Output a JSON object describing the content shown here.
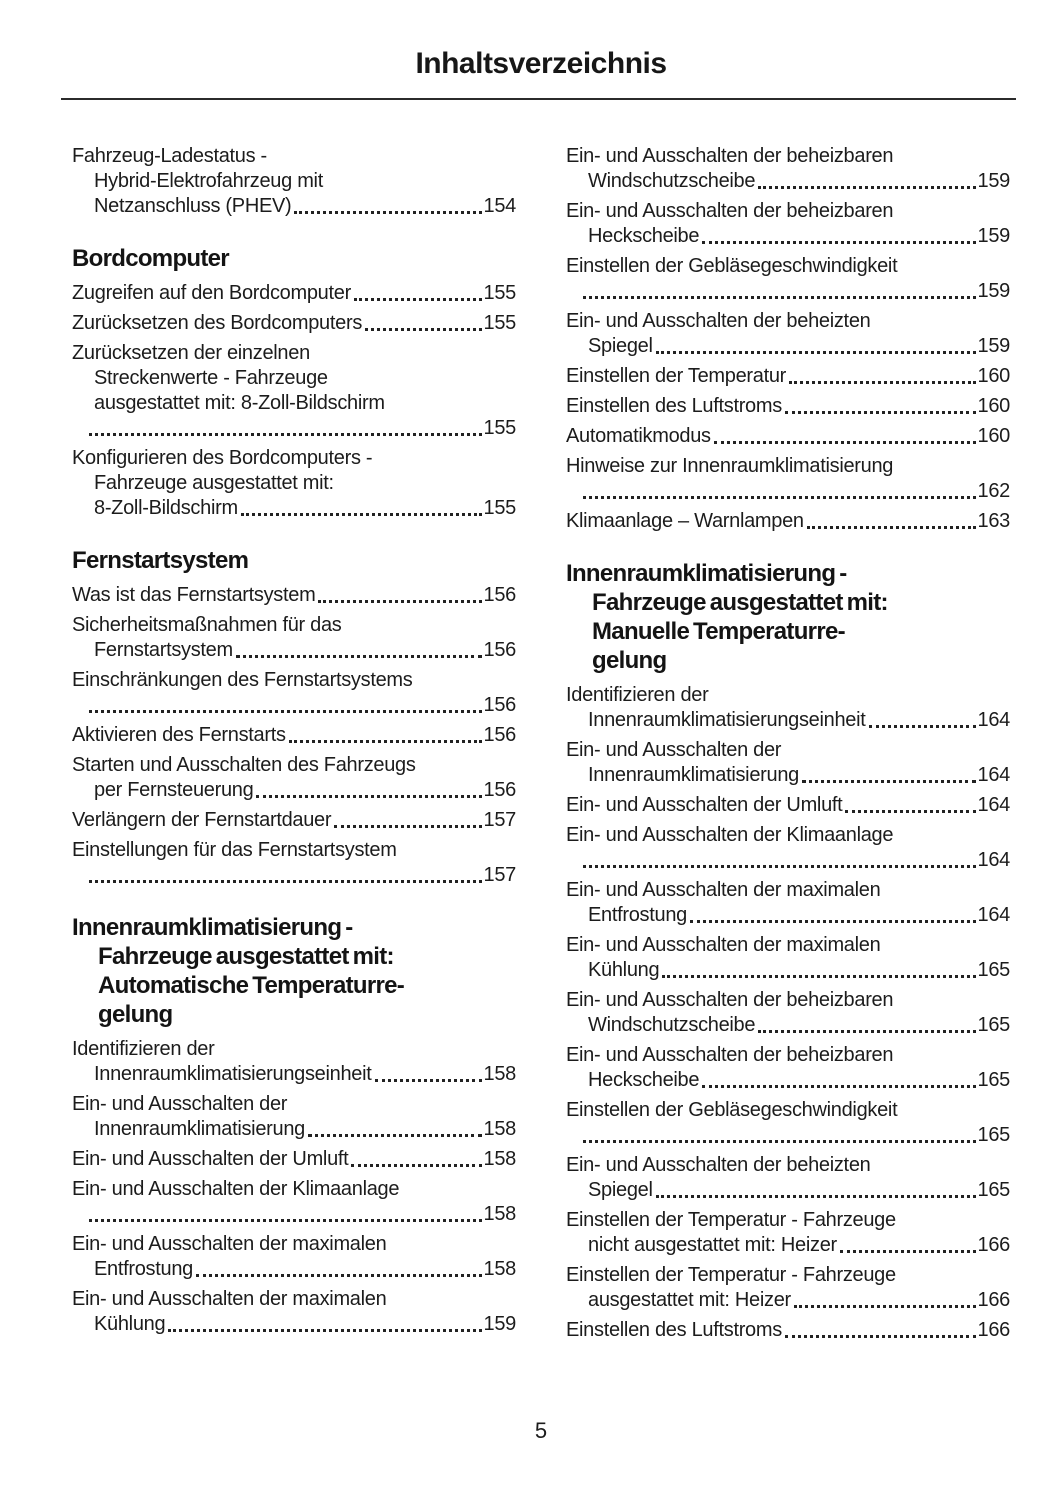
{
  "title": "Inhaltsverzeichnis",
  "footer": {
    "page_number": "5"
  },
  "colors": {
    "text": "#1c1c1c",
    "rule": "#2b2b2b",
    "background": "#ffffff"
  },
  "toc": {
    "columns": [
      {
        "blocks": [
          {
            "type": "entry",
            "lines": [
              "Fahrzeug-Ladestatus -",
              "Hybrid-Elektrofahrzeug mit",
              "Netzanschluss (PHEV)"
            ],
            "page": "154"
          },
          {
            "type": "heading",
            "lines": [
              "Bordcomputer"
            ]
          },
          {
            "type": "entry",
            "lines": [
              "Zugreifen auf den Bordcomputer"
            ],
            "page": "155"
          },
          {
            "type": "entry",
            "lines": [
              "Zurücksetzen des Bordcomputers"
            ],
            "page": "155"
          },
          {
            "type": "entry",
            "lines": [
              "Zurücksetzen der einzelnen",
              "Streckenwerte - Fahrzeuge",
              "ausgestattet mit: 8-Zoll-Bildschirm",
              ""
            ],
            "page": "155"
          },
          {
            "type": "entry",
            "lines": [
              "Konfigurieren des Bordcomputers -",
              "Fahrzeuge ausgestattet mit:",
              "8-Zoll-Bildschirm"
            ],
            "page": "155"
          },
          {
            "type": "heading",
            "lines": [
              "Fernstartsystem"
            ]
          },
          {
            "type": "entry",
            "lines": [
              "Was ist das Fernstartsystem"
            ],
            "page": "156"
          },
          {
            "type": "entry",
            "lines": [
              "Sicherheitsmaßnahmen für das",
              "Fernstartsystem"
            ],
            "page": "156"
          },
          {
            "type": "entry",
            "lines": [
              "Einschränkungen des Fernstartsystems",
              ""
            ],
            "page": "156"
          },
          {
            "type": "entry",
            "lines": [
              "Aktivieren des Fernstarts"
            ],
            "page": "156"
          },
          {
            "type": "entry",
            "lines": [
              "Starten und Ausschalten des Fahrzeugs",
              "per Fernsteuerung"
            ],
            "page": "156"
          },
          {
            "type": "entry",
            "lines": [
              "Verlängern der Fernstartdauer"
            ],
            "page": "157"
          },
          {
            "type": "entry",
            "lines": [
              "Einstellungen für das Fernstartsystem",
              ""
            ],
            "page": "157"
          },
          {
            "type": "heading",
            "lines": [
              "Innenraumklimatisierung -",
              "Fahrzeuge ausgestattet mit:",
              "Automatische Temperaturre-",
              "gelung"
            ]
          },
          {
            "type": "entry",
            "lines": [
              "Identifizieren der",
              "Innenraumklimatisierungseinheit"
            ],
            "page": "158"
          },
          {
            "type": "entry",
            "lines": [
              "Ein- und Ausschalten der",
              "Innenraumklimatisierung"
            ],
            "page": "158"
          },
          {
            "type": "entry",
            "lines": [
              "Ein- und Ausschalten der Umluft"
            ],
            "page": "158"
          },
          {
            "type": "entry",
            "lines": [
              "Ein- und Ausschalten der Klimaanlage",
              ""
            ],
            "page": "158"
          },
          {
            "type": "entry",
            "lines": [
              "Ein- und Ausschalten der maximalen",
              "Entfrostung"
            ],
            "page": "158"
          },
          {
            "type": "entry",
            "lines": [
              "Ein- und Ausschalten der maximalen",
              "Kühlung"
            ],
            "page": "159"
          }
        ]
      },
      {
        "blocks": [
          {
            "type": "entry",
            "lines": [
              "Ein- und Ausschalten der beheizbaren",
              "Windschutzscheibe"
            ],
            "page": "159"
          },
          {
            "type": "entry",
            "lines": [
              "Ein- und Ausschalten der beheizbaren",
              "Heckscheibe"
            ],
            "page": "159"
          },
          {
            "type": "entry",
            "lines": [
              "Einstellen der Gebläsegeschwindigkeit",
              ""
            ],
            "page": "159"
          },
          {
            "type": "entry",
            "lines": [
              "Ein- und Ausschalten der beheizten",
              "Spiegel"
            ],
            "page": "159"
          },
          {
            "type": "entry",
            "lines": [
              "Einstellen der Temperatur"
            ],
            "page": "160"
          },
          {
            "type": "entry",
            "lines": [
              "Einstellen des Luftstroms"
            ],
            "page": "160"
          },
          {
            "type": "entry",
            "lines": [
              "Automatikmodus"
            ],
            "page": "160"
          },
          {
            "type": "entry",
            "lines": [
              "Hinweise zur Innenraumklimatisierung",
              ""
            ],
            "page": "162"
          },
          {
            "type": "entry",
            "lines": [
              "Klimaanlage – Warnlampen"
            ],
            "page": "163"
          },
          {
            "type": "heading",
            "lines": [
              "Innenraumklimatisierung -",
              "Fahrzeuge ausgestattet mit:",
              "Manuelle Temperaturre-",
              "gelung"
            ]
          },
          {
            "type": "entry",
            "lines": [
              "Identifizieren der",
              "Innenraumklimatisierungseinheit"
            ],
            "page": "164"
          },
          {
            "type": "entry",
            "lines": [
              "Ein- und Ausschalten der",
              "Innenraumklimatisierung"
            ],
            "page": "164"
          },
          {
            "type": "entry",
            "lines": [
              "Ein- und Ausschalten der Umluft"
            ],
            "page": "164"
          },
          {
            "type": "entry",
            "lines": [
              "Ein- und Ausschalten der Klimaanlage",
              ""
            ],
            "page": "164"
          },
          {
            "type": "entry",
            "lines": [
              "Ein- und Ausschalten der maximalen",
              "Entfrostung"
            ],
            "page": "164"
          },
          {
            "type": "entry",
            "lines": [
              "Ein- und Ausschalten der maximalen",
              "Kühlung"
            ],
            "page": "165"
          },
          {
            "type": "entry",
            "lines": [
              "Ein- und Ausschalten der beheizbaren",
              "Windschutzscheibe"
            ],
            "page": "165"
          },
          {
            "type": "entry",
            "lines": [
              "Ein- und Ausschalten der beheizbaren",
              "Heckscheibe"
            ],
            "page": "165"
          },
          {
            "type": "entry",
            "lines": [
              "Einstellen der Gebläsegeschwindigkeit",
              ""
            ],
            "page": "165"
          },
          {
            "type": "entry",
            "lines": [
              "Ein- und Ausschalten der beheizten",
              "Spiegel"
            ],
            "page": "165"
          },
          {
            "type": "entry",
            "lines": [
              "Einstellen der Temperatur - Fahrzeuge",
              "nicht ausgestattet mit: Heizer"
            ],
            "page": "166"
          },
          {
            "type": "entry",
            "lines": [
              "Einstellen der Temperatur - Fahrzeuge",
              "ausgestattet mit: Heizer"
            ],
            "page": "166"
          },
          {
            "type": "entry",
            "lines": [
              "Einstellen des Luftstroms"
            ],
            "page": "166"
          }
        ]
      }
    ]
  }
}
